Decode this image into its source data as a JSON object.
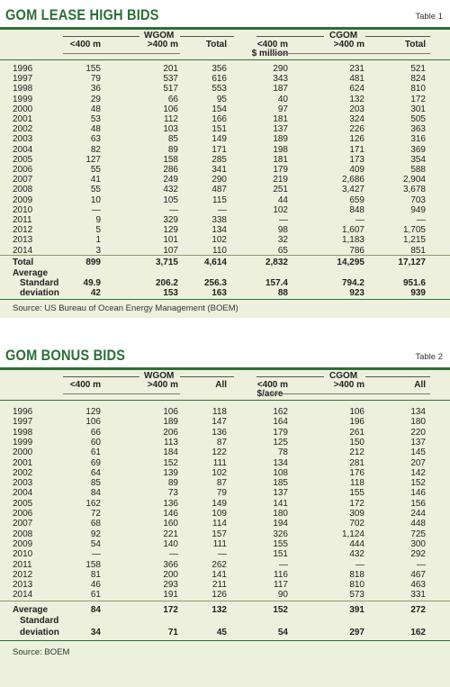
{
  "table1": {
    "title": "GOM LEASE HIGH BIDS",
    "label": "Table 1",
    "groups": [
      "WGOM",
      "CGOM"
    ],
    "columns": [
      "<400 m",
      ">400 m",
      "Total",
      "<400 m",
      ">400 m",
      "Total"
    ],
    "unit": "$ million",
    "rows": [
      {
        "year": "1996",
        "v": [
          "155",
          "201",
          "356",
          "290",
          "231",
          "521"
        ]
      },
      {
        "year": "1997",
        "v": [
          "79",
          "537",
          "616",
          "343",
          "481",
          "824"
        ]
      },
      {
        "year": "1998",
        "v": [
          "36",
          "517",
          "553",
          "187",
          "624",
          "810"
        ]
      },
      {
        "year": "1999",
        "v": [
          "29",
          "66",
          "95",
          "40",
          "132",
          "172"
        ]
      },
      {
        "year": "2000",
        "v": [
          "48",
          "106",
          "154",
          "97",
          "203",
          "301"
        ]
      },
      {
        "year": "2001",
        "v": [
          "53",
          "112",
          "166",
          "181",
          "324",
          "505"
        ]
      },
      {
        "year": "2002",
        "v": [
          "48",
          "103",
          "151",
          "137",
          "226",
          "363"
        ]
      },
      {
        "year": "2003",
        "v": [
          "63",
          "85",
          "149",
          "189",
          "126",
          "316"
        ]
      },
      {
        "year": "2004",
        "v": [
          "82",
          "89",
          "171",
          "198",
          "171",
          "369"
        ]
      },
      {
        "year": "2005",
        "v": [
          "127",
          "158",
          "285",
          "181",
          "173",
          "354"
        ]
      },
      {
        "year": "2006",
        "v": [
          "55",
          "286",
          "341",
          "179",
          "409",
          "588"
        ]
      },
      {
        "year": "2007",
        "v": [
          "41",
          "249",
          "290",
          "219",
          "2,686",
          "2,904"
        ]
      },
      {
        "year": "2008",
        "v": [
          "55",
          "432",
          "487",
          "251",
          "3,427",
          "3,678"
        ]
      },
      {
        "year": "2009",
        "v": [
          "10",
          "105",
          "115",
          "44",
          "659",
          "703"
        ]
      },
      {
        "year": "2010",
        "v": [
          "—",
          "—",
          "—",
          "102",
          "848",
          "949"
        ]
      },
      {
        "year": "2011",
        "v": [
          "9",
          "329",
          "338",
          "—",
          "—",
          "—"
        ]
      },
      {
        "year": "2012",
        "v": [
          "5",
          "129",
          "134",
          "98",
          "1,607",
          "1,705"
        ]
      },
      {
        "year": "2013",
        "v": [
          "1",
          "101",
          "102",
          "32",
          "1,183",
          "1,215"
        ]
      },
      {
        "year": "2014",
        "v": [
          "3",
          "107",
          "110",
          "65",
          "786",
          "851"
        ]
      }
    ],
    "total_label": "Total",
    "total": [
      "899",
      "3,715",
      "4,614",
      "2,832",
      "14,295",
      "17,127"
    ],
    "average_label": "Average",
    "average": [
      "49.9",
      "206.2",
      "256.3",
      "157.4",
      "794.2",
      "951.6"
    ],
    "sd_label_1": "Standard",
    "sd_label_2": "deviation",
    "sd": [
      "42",
      "153",
      "163",
      "88",
      "923",
      "939"
    ],
    "source": "Source: US Bureau of Ocean Energy Management (BOEM)"
  },
  "table2": {
    "title": "GOM BONUS BIDS",
    "label": "Table 2",
    "groups": [
      "WGOM",
      "CGOM"
    ],
    "columns": [
      "<400 m",
      ">400 m",
      "All",
      "<400 m",
      ">400 m",
      "All"
    ],
    "unit": "$/acre",
    "rows": [
      {
        "year": "1996",
        "v": [
          "129",
          "106",
          "118",
          "162",
          "106",
          "134"
        ]
      },
      {
        "year": "1997",
        "v": [
          "106",
          "189",
          "147",
          "164",
          "196",
          "180"
        ]
      },
      {
        "year": "1998",
        "v": [
          "66",
          "206",
          "136",
          "179",
          "261",
          "220"
        ]
      },
      {
        "year": "1999",
        "v": [
          "60",
          "113",
          "87",
          "125",
          "150",
          "137"
        ]
      },
      {
        "year": "2000",
        "v": [
          "61",
          "184",
          "122",
          "78",
          "212",
          "145"
        ]
      },
      {
        "year": "2001",
        "v": [
          "69",
          "152",
          "111",
          "134",
          "281",
          "207"
        ]
      },
      {
        "year": "2002",
        "v": [
          "64",
          "139",
          "102",
          "108",
          "176",
          "142"
        ]
      },
      {
        "year": "2003",
        "v": [
          "85",
          "89",
          "87",
          "185",
          "118",
          "152"
        ]
      },
      {
        "year": "2004",
        "v": [
          "84",
          "73",
          "79",
          "137",
          "155",
          "146"
        ]
      },
      {
        "year": "2005",
        "v": [
          "162",
          "136",
          "149",
          "141",
          "172",
          "156"
        ]
      },
      {
        "year": "2006",
        "v": [
          "72",
          "146",
          "109",
          "180",
          "309",
          "244"
        ]
      },
      {
        "year": "2007",
        "v": [
          "68",
          "160",
          "114",
          "194",
          "702",
          "448"
        ]
      },
      {
        "year": "2008",
        "v": [
          "92",
          "221",
          "157",
          "326",
          "1,124",
          "725"
        ]
      },
      {
        "year": "2009",
        "v": [
          "54",
          "140",
          "111",
          "155",
          "444",
          "300"
        ]
      },
      {
        "year": "2010",
        "v": [
          "—",
          "—",
          "—",
          "151",
          "432",
          "292"
        ]
      },
      {
        "year": "2011",
        "v": [
          "158",
          "366",
          "262",
          "—",
          "—",
          "—"
        ]
      },
      {
        "year": "2012",
        "v": [
          "81",
          "200",
          "141",
          "116",
          "818",
          "467"
        ]
      },
      {
        "year": "2013",
        "v": [
          "46",
          "293",
          "211",
          "117",
          "810",
          "463"
        ]
      },
      {
        "year": "2014",
        "v": [
          "61",
          "191",
          "126",
          "90",
          "573",
          "331"
        ]
      }
    ],
    "average_label": "Average",
    "average": [
      "84",
      "172",
      "132",
      "152",
      "391",
      "272"
    ],
    "sd_label_1": "Standard",
    "sd_label_2": "deviation",
    "sd": [
      "34",
      "71",
      "45",
      "54",
      "297",
      "162"
    ],
    "source": "Source: BOEM"
  },
  "colors": {
    "accent": "#2c6f36",
    "panel": "#edf0dc"
  }
}
